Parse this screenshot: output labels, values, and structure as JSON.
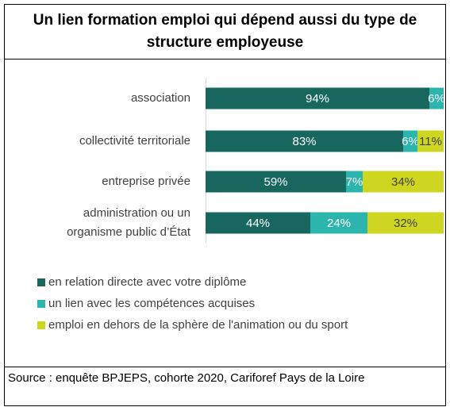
{
  "chart_data": {
    "type": "bar",
    "orientation": "horizontal",
    "stacked": true,
    "title": "Un lien formation emploi qui dépend aussi du type de structure employeuse",
    "categories": [
      "association",
      "collectivité territoriale",
      "entreprise privée",
      "administration ou un\norganisme public d’État"
    ],
    "series": [
      {
        "name": "en relation directe avec votre diplôme",
        "color": "#17675f",
        "values": [
          94,
          83,
          59,
          44
        ],
        "value_labels": [
          "94%",
          "83%",
          "59%",
          "44%"
        ]
      },
      {
        "name": "un lien avec les compétences acquises",
        "color": "#2bb5ad",
        "values": [
          6,
          6,
          7,
          24
        ],
        "value_labels": [
          "6%",
          "6%",
          "7%",
          "24%"
        ]
      },
      {
        "name": "emploi en dehors de la sphère de l'animation ou du sport",
        "color": "#cfd61f",
        "values": [
          null,
          11,
          34,
          32
        ],
        "value_labels": [
          null,
          "11%",
          "34%",
          "32%"
        ]
      }
    ],
    "xlim": [
      0,
      100
    ],
    "source": "Source : enquête BPJEPS, cohorte 2020, Cariforef Pays de la Loire"
  }
}
